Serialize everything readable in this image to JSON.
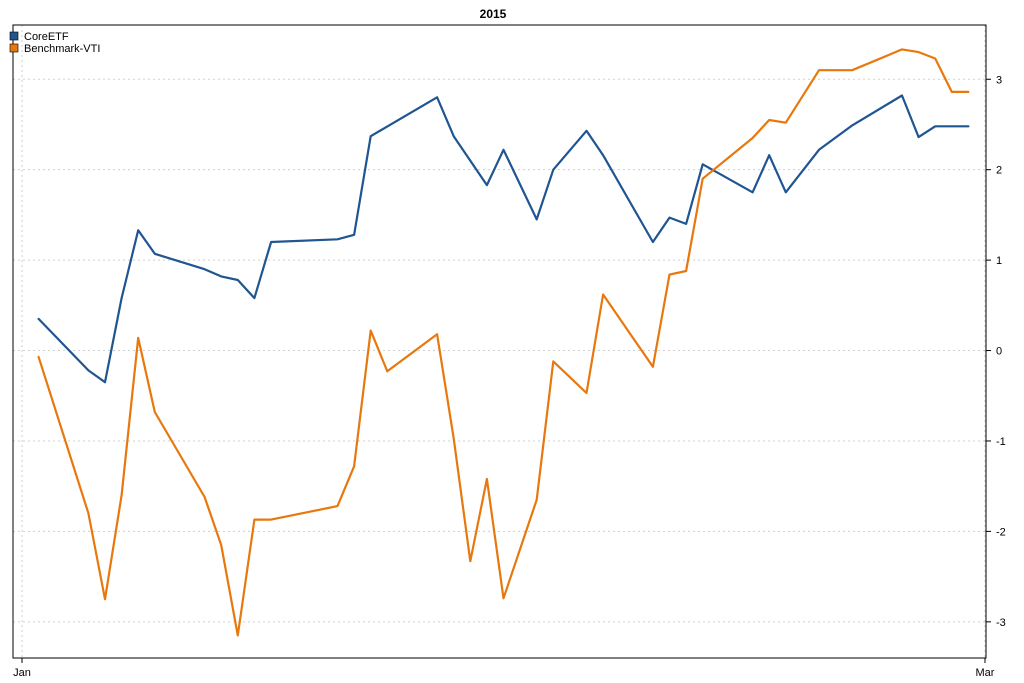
{
  "chart_data": {
    "type": "line",
    "title": "2015",
    "xlabel": "",
    "ylabel": "",
    "x_ticks": [
      {
        "label": "Jan",
        "value": 0
      },
      {
        "label": "Mar",
        "value": 58
      }
    ],
    "xlim": [
      0,
      58
    ],
    "ylim": [
      -3.4,
      3.6
    ],
    "y_ticks": [
      -3,
      -2,
      -1,
      0,
      1,
      2,
      3
    ],
    "y_axis_side": "right",
    "grid": true,
    "legend_position": "top-left",
    "series": [
      {
        "name": "CoreETF",
        "color": "#1f5591",
        "x": [
          1,
          4,
          5,
          6,
          7,
          8,
          11,
          12,
          13,
          14,
          15,
          19,
          20,
          21,
          25,
          26,
          28,
          29,
          31,
          32,
          34,
          35,
          38,
          39,
          40,
          41,
          44,
          45,
          46,
          48,
          50,
          53,
          54,
          55,
          56,
          57
        ],
        "y": [
          0.35,
          -0.22,
          -0.35,
          0.58,
          1.33,
          1.07,
          0.9,
          0.82,
          0.78,
          0.58,
          1.2,
          1.23,
          1.28,
          2.37,
          2.8,
          2.37,
          1.83,
          2.22,
          1.45,
          2.0,
          2.43,
          2.16,
          1.2,
          1.47,
          1.4,
          2.06,
          1.75,
          2.16,
          1.75,
          2.22,
          2.49,
          2.82,
          2.36,
          2.48,
          2.48,
          2.48
        ]
      },
      {
        "name": "Benchmark-VTI",
        "color": "#e8780e",
        "x": [
          1,
          4,
          5,
          6,
          7,
          8,
          11,
          12,
          13,
          14,
          15,
          19,
          20,
          21,
          22,
          25,
          26,
          27,
          28,
          29,
          31,
          32,
          34,
          35,
          38,
          39,
          40,
          41,
          44,
          45,
          46,
          48,
          50,
          53,
          54,
          55,
          56,
          57
        ],
        "y": [
          -0.07,
          -1.8,
          -2.75,
          -1.6,
          0.14,
          -0.68,
          -1.62,
          -2.15,
          -3.15,
          -1.87,
          -1.87,
          -1.72,
          -1.28,
          0.22,
          -0.23,
          0.18,
          -0.97,
          -2.33,
          -1.42,
          -2.74,
          -1.65,
          -0.12,
          -0.47,
          0.62,
          -0.18,
          0.84,
          0.88,
          1.9,
          2.35,
          2.55,
          2.52,
          3.1,
          3.1,
          3.33,
          3.3,
          3.23,
          2.86,
          2.86
        ]
      }
    ]
  }
}
